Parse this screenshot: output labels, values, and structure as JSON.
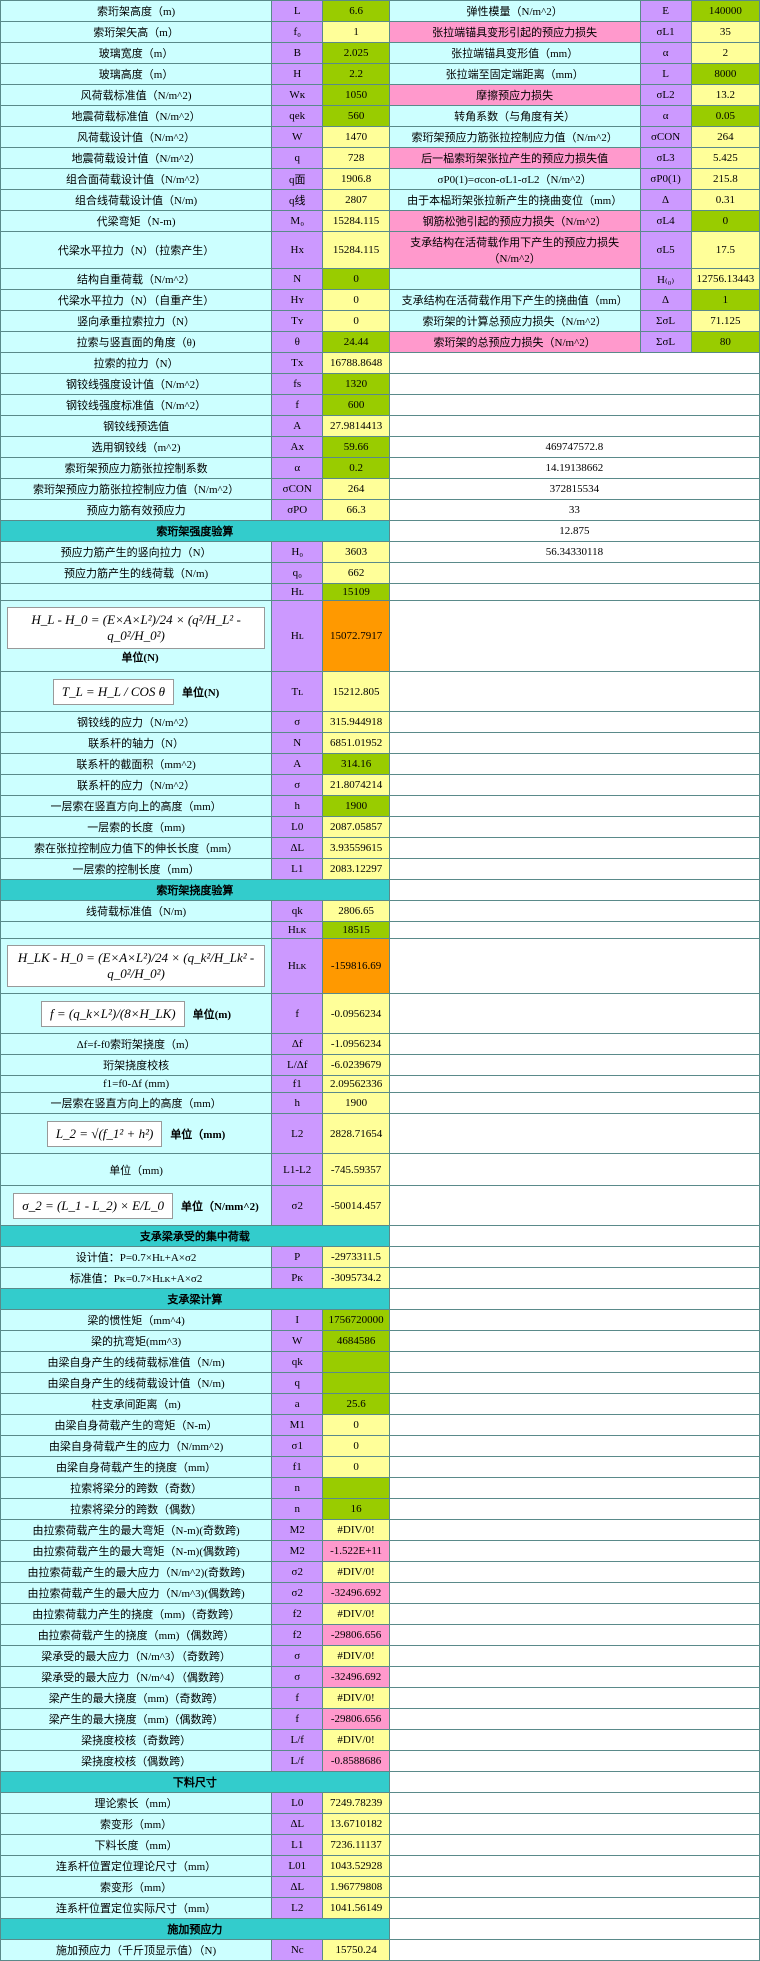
{
  "section1": {
    "rows": [
      {
        "label": "索珩架高度（m)",
        "sym": "L",
        "val": "6.6",
        "vc": "v-green",
        "desc": "弹性模量（N/m^2）",
        "dc": "desc-cyan",
        "sym2": "E",
        "val2": "140000",
        "vc2": "v-green"
      },
      {
        "label": "索珩架矢高（m）",
        "sym": "f₀",
        "val": "1",
        "vc": "v-yellow",
        "desc": "张拉端锚具变形引起的预应力损失",
        "dc": "desc-pink",
        "sym2": "σL1",
        "val2": "35",
        "vc2": "v-yellow"
      },
      {
        "label": "玻璃宽度（m）",
        "sym": "B",
        "val": "2.025",
        "vc": "v-green",
        "desc": "张拉端锚具变形值（mm）",
        "dc": "desc-cyan",
        "sym2": "α",
        "val2": "2",
        "vc2": "v-yellow"
      },
      {
        "label": "玻璃高度（m）",
        "sym": "H",
        "val": "2.2",
        "vc": "v-green",
        "desc": "张拉端至固定端距离（mm）",
        "dc": "desc-cyan",
        "sym2": "L",
        "val2": "8000",
        "vc2": "v-green"
      },
      {
        "label": "风荷载标准值（N/m^2)",
        "sym": "Wк",
        "val": "1050",
        "vc": "v-green",
        "desc": "摩擦预应力损失",
        "dc": "desc-pink",
        "sym2": "σL2",
        "val2": "13.2",
        "vc2": "v-yellow"
      },
      {
        "label": "地震荷载标准值（N/m^2）",
        "sym": "qek",
        "val": "560",
        "vc": "v-green",
        "desc": "转角系数（与角度有关）",
        "dc": "desc-cyan",
        "sym2": "α",
        "val2": "0.05",
        "vc2": "v-green"
      },
      {
        "label": "风荷载设计值（N/m^2）",
        "sym": "W",
        "val": "1470",
        "vc": "v-yellow",
        "desc": "索珩架预应力筋张拉控制应力值（N/m^2）",
        "dc": "desc-cyan",
        "sym2": "σCON",
        "val2": "264",
        "vc2": "v-yellow"
      },
      {
        "label": "地震荷载设计值（N/m^2）",
        "sym": "q",
        "val": "728",
        "vc": "v-yellow",
        "desc": "后一榀索珩架张拉产生的预应力损失值",
        "dc": "desc-pink",
        "sym2": "σL3",
        "val2": "5.425",
        "vc2": "v-yellow"
      },
      {
        "label": "组合面荷载设计值（N/m^2）",
        "sym": "q面",
        "val": "1906.8",
        "vc": "v-yellow",
        "desc": "σP0(1)=σcon-σL1-σL2（N/m^2）",
        "dc": "desc-cyan",
        "sym2": "σP0(1)",
        "val2": "215.8",
        "vc2": "v-yellow"
      },
      {
        "label": "组合线荷载设计值（N/m)",
        "sym": "q线",
        "val": "2807",
        "vc": "v-yellow",
        "desc": "由于本榀珩架张拉新产生的挠曲变位（mm）",
        "dc": "desc-cyan",
        "sym2": "Δ",
        "val2": "0.31",
        "vc2": "v-yellow"
      },
      {
        "label": "代梁弯矩（N-m)",
        "sym": "M₀",
        "val": "15284.115",
        "vc": "v-yellow",
        "desc": "钢筋松弛引起的预应力损失（N/m^2）",
        "dc": "desc-pink",
        "sym2": "σL4",
        "val2": "0",
        "vc2": "v-green"
      },
      {
        "label": "代梁水平拉力（N）（拉索产生）",
        "sym": "Hx",
        "val": "15284.115",
        "vc": "v-yellow",
        "desc": "支承结构在活荷载作用下产生的预应力损失（N/m^2）",
        "dc": "desc-pink",
        "sym2": "σL5",
        "val2": "17.5",
        "vc2": "v-yellow"
      },
      {
        "label": "结构自重荷载（N/m^2）",
        "sym": "N",
        "val": "0",
        "vc": "v-green",
        "desc": "",
        "dc": "desc-cyan",
        "sym2": "H₍₀₎",
        "val2": "12756.13443",
        "vc2": "v-yellow"
      },
      {
        "label": "代梁水平拉力（N）（自重产生）",
        "sym": "Hʏ",
        "val": "0",
        "vc": "v-yellow",
        "desc": "支承结构在活荷载作用下产生的挠曲值（mm）",
        "dc": "desc-cyan",
        "sym2": "Δ",
        "val2": "1",
        "vc2": "v-green"
      },
      {
        "label": "竖向承重拉索拉力（N）",
        "sym": "Tʏ",
        "val": "0",
        "vc": "v-yellow",
        "desc": "索珩架的计算总预应力损失（N/m^2）",
        "dc": "desc-cyan",
        "sym2": "ΣσL",
        "val2": "71.125",
        "vc2": "v-yellow"
      },
      {
        "label": "拉索与竖直面的角度（θ)",
        "sym": "θ",
        "val": "24.44",
        "vc": "v-green",
        "desc": "索珩架的总预应力损失（N/m^2）",
        "dc": "desc-pink",
        "sym2": "ΣσL",
        "val2": "80",
        "vc2": "v-green"
      }
    ]
  },
  "section2": {
    "rows": [
      {
        "label": "拉索的拉力（N）",
        "sym": "Tx",
        "val": "16788.8648",
        "vc": "v-yellow",
        "rval": ""
      },
      {
        "label": "钢铰线强度设计值（N/m^2）",
        "sym": "fs",
        "val": "1320",
        "vc": "v-green",
        "rval": ""
      },
      {
        "label": "钢铰线强度标准值（N/m^2）",
        "sym": "f",
        "val": "600",
        "vc": "v-green",
        "rval": ""
      },
      {
        "label": "钢铰线预选值",
        "sym": "A",
        "val": "27.9814413",
        "vc": "v-yellow",
        "rval": ""
      },
      {
        "label": "选用钢铰线（m^2)",
        "sym": "Ax",
        "val": "59.66",
        "vc": "v-green",
        "rval": "469747572.8"
      },
      {
        "label": "索珩架预应力筋张拉控制系数",
        "sym": "α",
        "val": "0.2",
        "vc": "v-green",
        "rval": "14.19138662"
      },
      {
        "label": "索珩架预应力筋张拉控制应力值（N/m^2）",
        "sym": "σCON",
        "val": "264",
        "vc": "v-yellow",
        "rval": "372815534"
      },
      {
        "label": "预应力筋有效预应力",
        "sym": "σPO",
        "val": "66.3",
        "vc": "v-yellow",
        "rval": "33"
      }
    ]
  },
  "headers": {
    "h1": "索珩架强度验算",
    "h2": "索珩架挠度验算",
    "h3": "支承梁承受的集中荷载",
    "h4": "支承梁计算",
    "h5": "下料尺寸",
    "h6": "施加预应力"
  },
  "section3": {
    "rows": [
      {
        "label": "预应力筋产生的竖向拉力（N）",
        "sym": "H₀",
        "val": "3603",
        "vc": "v-yellow",
        "rval": "56.34330118"
      },
      {
        "label": "预应力筋产生的线荷载（N/m)",
        "sym": "q₀",
        "val": "662",
        "vc": "v-yellow",
        "rval": ""
      },
      {
        "label": "",
        "sym": "Hʟ",
        "val": "15109",
        "vc": "v-green",
        "rval": ""
      }
    ],
    "formula1": {
      "text": "H_L - H_0 = (E×A×L²)/24 × (q²/H_L² - q_0²/H_0²)",
      "unit": "单位(N)",
      "sym": "Hʟ",
      "val": "15072.7917",
      "vc": "v-orange"
    },
    "formula2": {
      "text": "T_L = H_L / COS θ",
      "unit": "单位(N)",
      "sym": "Tʟ",
      "val": "15212.805",
      "vc": "v-yellow"
    },
    "rows2": [
      {
        "label": "钢铰线的应力（N/m^2）",
        "sym": "σ",
        "val": "315.944918",
        "vc": "v-yellow"
      },
      {
        "label": "联系杆的轴力（N）",
        "sym": "N",
        "val": "6851.01952",
        "vc": "v-yellow"
      },
      {
        "label": "联系杆的截面积（mm^2)",
        "sym": "A",
        "val": "314.16",
        "vc": "v-green"
      },
      {
        "label": "联系杆的应力（N/m^2）",
        "sym": "σ",
        "val": "21.8074214",
        "vc": "v-yellow"
      },
      {
        "label": "一层索在竖直方向上的高度（mm）",
        "sym": "h",
        "val": "1900",
        "vc": "v-green"
      },
      {
        "label": "一层索的长度（mm)",
        "sym": "L0",
        "val": "2087.05857",
        "vc": "v-yellow"
      },
      {
        "label": "索在张拉控制应力值下的伸长长度（mm）",
        "sym": "ΔL",
        "val": "3.93559615",
        "vc": "v-yellow"
      },
      {
        "label": "一层索的控制长度（mm）",
        "sym": "L1",
        "val": "2083.12297",
        "vc": "v-yellow"
      }
    ]
  },
  "section4": {
    "rows1": [
      {
        "label": "线荷载标准值（N/m)",
        "sym": "qk",
        "val": "2806.65",
        "vc": "v-yellow"
      },
      {
        "label": "",
        "sym": "Hʟᴋ",
        "val": "18515",
        "vc": "v-green"
      }
    ],
    "formula1": {
      "text": "H_LK - H_0 = (E×A×L²)/24 × (q_k²/H_Lk² - q_0²/H_0²)",
      "unit": "",
      "sym": "Hʟᴋ",
      "val": "-159816.69",
      "vc": "v-orange"
    },
    "formula2": {
      "text": "f = (q_k×L²)/(8×H_LK)",
      "unit": "单位(m)",
      "sym": "f",
      "val": "-0.0956234",
      "vc": "v-yellow"
    },
    "rows2": [
      {
        "label": "Δf=f-f0索珩架挠度（m）",
        "sym": "Δf",
        "val": "-1.0956234",
        "vc": "v-yellow"
      },
      {
        "label": "珩架挠度校核",
        "sym": "L/Δf",
        "val": "-6.0239679",
        "vc": "v-yellow"
      },
      {
        "label": "f1=f0-Δf                         (mm)",
        "sym": "f1",
        "val": "2.09562336",
        "vc": "v-yellow"
      },
      {
        "label": "一层索在竖直方向上的高度（mm）",
        "sym": "h",
        "val": "1900",
        "vc": "v-yellow"
      }
    ],
    "formula3": {
      "text": "L_2 = √(f_1² + h²)",
      "unit": "单位（mm)",
      "sym": "L2",
      "val": "2828.71654",
      "vc": "v-yellow"
    },
    "row_l1l2": {
      "label": "单位（mm)",
      "sym": "L1-L2",
      "val": "-745.59357",
      "vc": "v-yellow"
    },
    "formula4": {
      "text": "σ_2 = (L_1 - L_2) × E/L_0",
      "unit": "单位（N/mm^2)",
      "sym": "σ2",
      "val": "-50014.457",
      "vc": "v-yellow"
    }
  },
  "section5": {
    "rows": [
      {
        "label": "设计值：P=0.7×Hʟ+A×σ2",
        "sym": "P",
        "val": "-2973311.5",
        "vc": "v-yellow"
      },
      {
        "label": "标准值：Pᴋ=0.7×Hʟᴋ+A×σ2",
        "sym": "Pᴋ",
        "val": "-3095734.2",
        "vc": "v-yellow"
      }
    ]
  },
  "section6": {
    "rows": [
      {
        "label": "梁的惯性矩（mm^4)",
        "sym": "I",
        "val": "1756720000",
        "vc": "v-green"
      },
      {
        "label": "梁的抗弯矩(mm^3)",
        "sym": "W",
        "val": "4684586",
        "vc": "v-green"
      },
      {
        "label": "由梁自身产生的线荷载标准值（N/m)",
        "sym": "qk",
        "val": "",
        "vc": "v-green"
      },
      {
        "label": "由梁自身产生的线荷载设计值（N/m)",
        "sym": "q",
        "val": "",
        "vc": "v-green"
      },
      {
        "label": "柱支承间距离（m)",
        "sym": "a",
        "val": "25.6",
        "vc": "v-green"
      },
      {
        "label": "由梁自身荷载产生的弯矩（N-m）",
        "sym": "M1",
        "val": "0",
        "vc": "v-yellow"
      },
      {
        "label": "由梁自身荷载产生的应力（N/mm^2)",
        "sym": "σ1",
        "val": "0",
        "vc": "v-yellow"
      },
      {
        "label": "由梁自身荷载产生的挠度（mm）",
        "sym": "f1",
        "val": "0",
        "vc": "v-yellow"
      },
      {
        "label": "拉索将梁分的跨数（奇数）",
        "sym": "n",
        "val": "",
        "vc": "v-green"
      },
      {
        "label": "拉索将梁分的跨数（偶数）",
        "sym": "n",
        "val": "16",
        "vc": "v-green"
      },
      {
        "label": "由拉索荷载产生的最大弯矩（N-m)(奇数跨)",
        "sym": "M2",
        "val": "#DIV/0!",
        "vc": "v-yellow"
      },
      {
        "label": "由拉索荷载产生的最大弯矩（N-m)(偶数跨)",
        "sym": "M2",
        "val": "-1.522E+11",
        "vc": "v-pink"
      },
      {
        "label": "由拉索荷载产生的最大应力（N/m^2)(奇数跨)",
        "sym": "σ2",
        "val": "#DIV/0!",
        "vc": "v-yellow"
      },
      {
        "label": "由拉索荷载产生的最大应力（N/m^3)(偶数跨)",
        "sym": "σ2",
        "val": "-32496.692",
        "vc": "v-pink"
      },
      {
        "label": "由拉索荷载力产生的挠度（mm)（奇数跨）",
        "sym": "f2",
        "val": "#DIV/0!",
        "vc": "v-yellow"
      },
      {
        "label": "由拉索荷载产生的挠度（mm)（偶数跨）",
        "sym": "f2",
        "val": "-29806.656",
        "vc": "v-pink"
      },
      {
        "label": "梁承受的最大应力（N/m^3）（奇数跨）",
        "sym": "σ",
        "val": "#DIV/0!",
        "vc": "v-yellow"
      },
      {
        "label": "梁承受的最大应力（N/m^4）（偶数跨）",
        "sym": "σ",
        "val": "-32496.692",
        "vc": "v-pink"
      },
      {
        "label": "梁产生的最大挠度（mm)（奇数跨）",
        "sym": "f",
        "val": "#DIV/0!",
        "vc": "v-yellow"
      },
      {
        "label": "梁产生的最大挠度（mm)（偶数跨）",
        "sym": "f",
        "val": "-29806.656",
        "vc": "v-pink"
      },
      {
        "label": "梁挠度校核（奇数跨）",
        "sym": "L/f",
        "val": "#DIV/0!",
        "vc": "v-yellow"
      },
      {
        "label": "梁挠度校核（偶数跨）",
        "sym": "L/f",
        "val": "-0.8588686",
        "vc": "v-pink"
      }
    ]
  },
  "section7": {
    "rows": [
      {
        "label": "理论索长（mm）",
        "sym": "L0",
        "val": "7249.78239",
        "vc": "v-yellow"
      },
      {
        "label": "索变形（mm）",
        "sym": "ΔL",
        "val": "13.6710182",
        "vc": "v-yellow"
      },
      {
        "label": "下料长度（mm）",
        "sym": "L1",
        "val": "7236.11137",
        "vc": "v-yellow"
      },
      {
        "label": "连系杆位置定位理论尺寸（mm）",
        "sym": "L01",
        "val": "1043.52928",
        "vc": "v-yellow"
      },
      {
        "label": "索变形（mm）",
        "sym": "ΔL",
        "val": "1.96779808",
        "vc": "v-yellow"
      },
      {
        "label": "连系杆位置定位实际尺寸（mm）",
        "sym": "L2",
        "val": "1041.56149",
        "vc": "v-yellow"
      }
    ]
  },
  "section8": {
    "rows": [
      {
        "label": "施加预应力（千斤顶显示值）（N)",
        "sym": "Nc",
        "val": "15750.24",
        "vc": "v-yellow"
      }
    ]
  }
}
